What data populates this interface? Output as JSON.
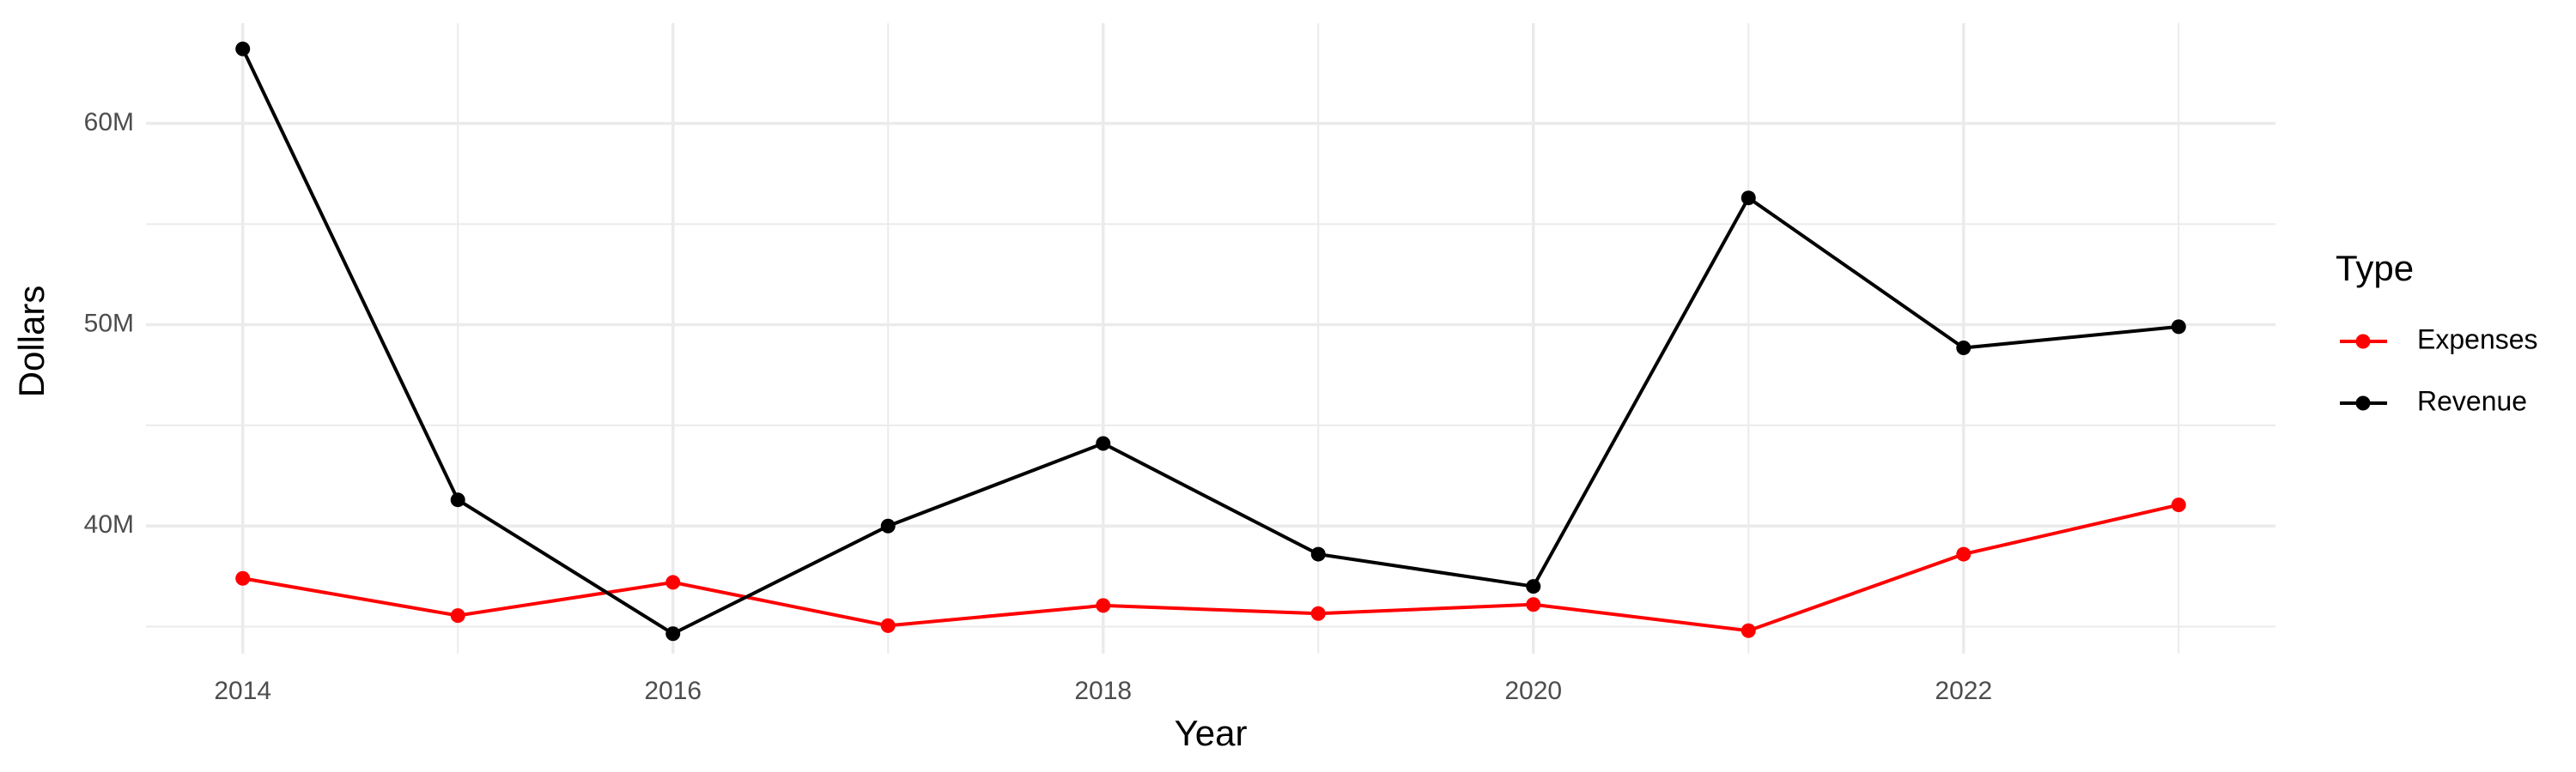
{
  "chart_data": {
    "type": "line",
    "x_label": "Year",
    "y_label": "Dollars",
    "legend_title": "Type",
    "legend_position": "right",
    "x": [
      2014,
      2015,
      2016,
      2017,
      2018,
      2019,
      2020,
      2021,
      2022,
      2023
    ],
    "series": [
      {
        "name": "Expenses",
        "color": "#ff0000",
        "values": [
          37400000,
          35550000,
          37200000,
          35050000,
          36050000,
          35650000,
          36100000,
          34800000,
          38600000,
          41050000
        ]
      },
      {
        "name": "Revenue",
        "color": "#000000",
        "values": [
          63700000,
          41300000,
          34650000,
          40000000,
          44100000,
          38600000,
          37000000,
          56300000,
          48850000,
          49900000
        ]
      }
    ],
    "xlim": [
      2013.55,
      2023.45
    ],
    "xticks": [
      2014,
      2016,
      2018,
      2020,
      2022
    ],
    "x_minor_ticks": [
      2015,
      2017,
      2019,
      2021,
      2023
    ],
    "ylim": [
      33660000,
      64980000
    ],
    "yticks": [
      {
        "value": 40000000,
        "label": "40M"
      },
      {
        "value": 50000000,
        "label": "50M"
      },
      {
        "value": 60000000,
        "label": "60M"
      }
    ],
    "y_minor_ticks": [
      35000000,
      45000000,
      55000000
    ],
    "grid": true
  }
}
